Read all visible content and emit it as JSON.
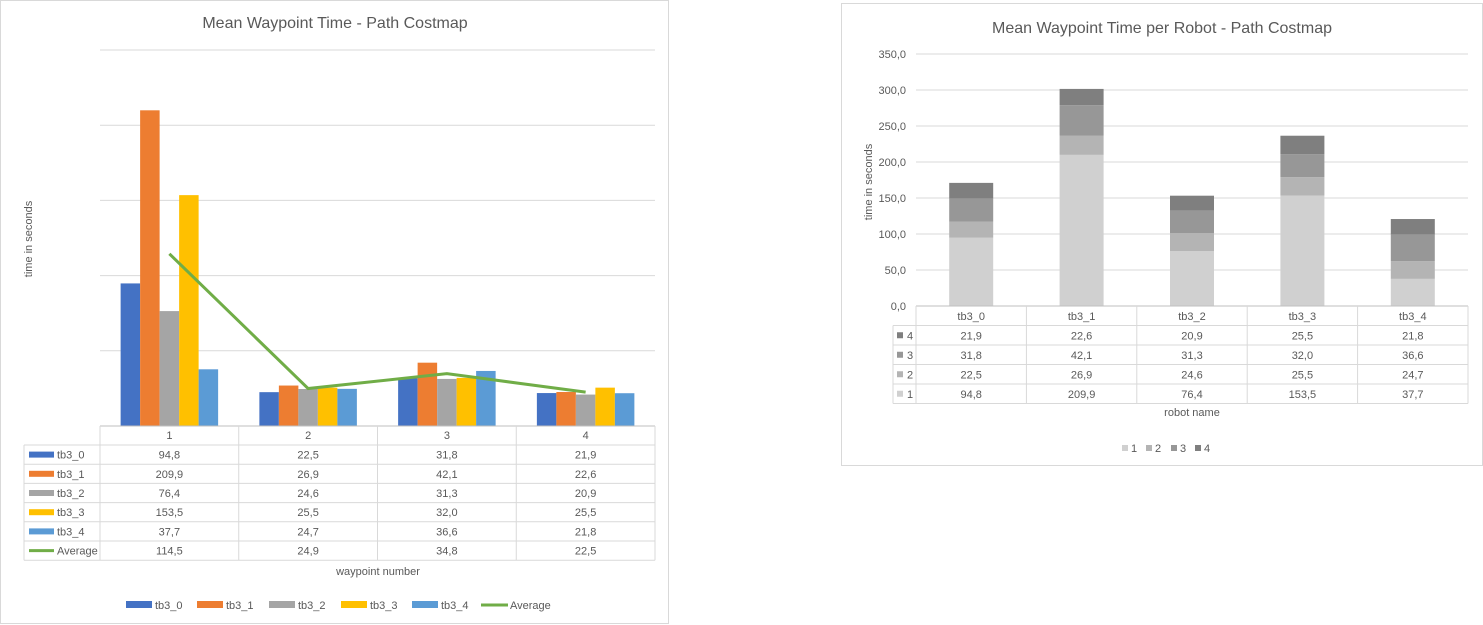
{
  "chart_data": [
    {
      "type": "bar",
      "title": "Mean Waypoint Time - Path Costmap",
      "xlabel": "waypoint number",
      "ylabel": "time in seconds",
      "ylim": [
        0,
        250
      ],
      "categories": [
        "1",
        "2",
        "3",
        "4"
      ],
      "series": [
        {
          "name": "tb3_0",
          "type": "bar",
          "color": "#4472c4",
          "values": [
            94.8,
            22.5,
            31.8,
            21.9
          ],
          "labels": [
            "94,8",
            "22,5",
            "31,8",
            "21,9"
          ]
        },
        {
          "name": "tb3_1",
          "type": "bar",
          "color": "#ed7d31",
          "values": [
            209.9,
            26.9,
            42.1,
            22.6
          ],
          "labels": [
            "209,9",
            "26,9",
            "42,1",
            "22,6"
          ]
        },
        {
          "name": "tb3_2",
          "type": "bar",
          "color": "#a5a5a5",
          "values": [
            76.4,
            24.6,
            31.3,
            20.9
          ],
          "labels": [
            "76,4",
            "24,6",
            "31,3",
            "20,9"
          ]
        },
        {
          "name": "tb3_3",
          "type": "bar",
          "color": "#ffc000",
          "values": [
            153.5,
            25.5,
            32.0,
            25.5
          ],
          "labels": [
            "153,5",
            "25,5",
            "32,0",
            "25,5"
          ]
        },
        {
          "name": "tb3_4",
          "type": "bar",
          "color": "#5b9bd5",
          "values": [
            37.7,
            24.7,
            36.6,
            21.8
          ],
          "labels": [
            "37,7",
            "24,7",
            "36,6",
            "21,8"
          ]
        },
        {
          "name": "Average",
          "type": "line",
          "color": "#70ad47",
          "values": [
            114.5,
            24.9,
            34.8,
            22.5
          ],
          "labels": [
            "114,5",
            "24,9",
            "34,8",
            "22,5"
          ]
        }
      ],
      "grid": true,
      "data_table": true,
      "legend": "bottom"
    },
    {
      "type": "bar",
      "stacked": true,
      "title": "Mean Waypoint Time per Robot - Path Costmap",
      "xlabel": "robot name",
      "ylabel": "time in seconds",
      "ylim": [
        0,
        350
      ],
      "yticks": [
        "0,0",
        "50,0",
        "100,0",
        "150,0",
        "200,0",
        "250,0",
        "300,0",
        "350,0"
      ],
      "categories": [
        "tb3_0",
        "tb3_1",
        "tb3_2",
        "tb3_3",
        "tb3_4"
      ],
      "series": [
        {
          "name": "1",
          "color": "#d0d0d0",
          "values": [
            94.8,
            209.9,
            76.4,
            153.5,
            37.7
          ],
          "labels": [
            "94,8",
            "209,9",
            "76,4",
            "153,5",
            "37,7"
          ]
        },
        {
          "name": "2",
          "color": "#b4b4b4",
          "values": [
            22.5,
            26.9,
            24.6,
            25.5,
            24.7
          ],
          "labels": [
            "22,5",
            "26,9",
            "24,6",
            "25,5",
            "24,7"
          ]
        },
        {
          "name": "3",
          "color": "#979797",
          "values": [
            31.8,
            42.1,
            31.3,
            32.0,
            36.6
          ],
          "labels": [
            "31,8",
            "42,1",
            "31,3",
            "32,0",
            "36,6"
          ]
        },
        {
          "name": "4",
          "color": "#7f7f7f",
          "values": [
            21.9,
            22.6,
            20.9,
            25.5,
            21.8
          ],
          "labels": [
            "21,9",
            "22,6",
            "20,9",
            "25,5",
            "21,8"
          ]
        }
      ],
      "grid": true,
      "data_table": true,
      "legend": "bottom"
    }
  ]
}
